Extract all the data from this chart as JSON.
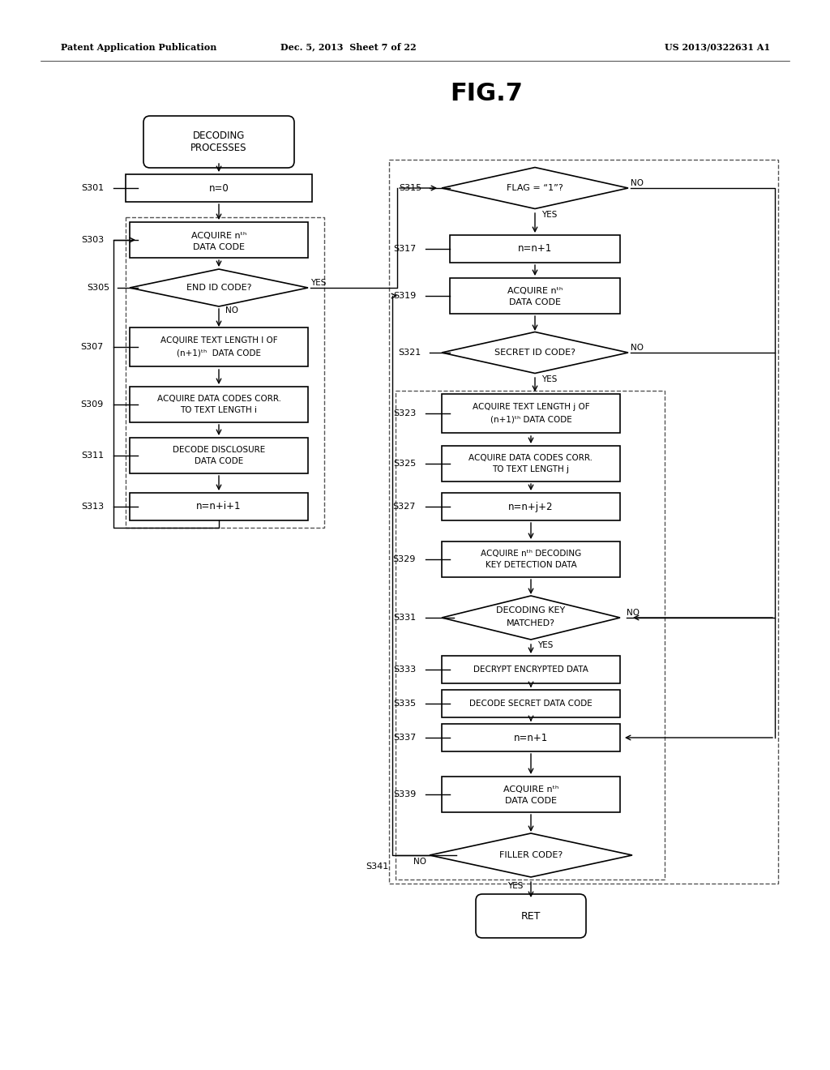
{
  "title": "FIG.7",
  "header_left": "Patent Application Publication",
  "header_mid": "Dec. 5, 2013  Sheet 7 of 22",
  "header_right": "US 2013/0322631 A1",
  "background": "#ffffff"
}
